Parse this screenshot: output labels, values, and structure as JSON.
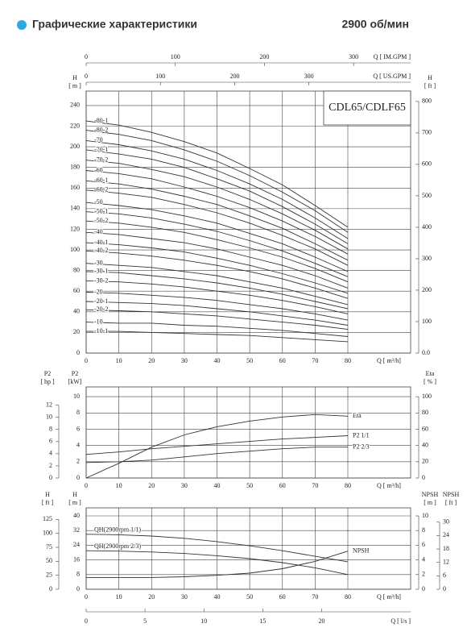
{
  "header": {
    "title": "Графические характеристики",
    "speed": "2900 об/мин"
  },
  "chart_data": [
    {
      "type": "line",
      "model": "CDL65/CDLF65",
      "grid": true,
      "x": [
        0,
        10,
        20,
        30,
        40,
        50,
        60,
        70,
        80
      ],
      "xlim": [
        0,
        99.2
      ],
      "xticks": [
        0,
        10,
        20,
        30,
        40,
        50,
        60,
        70,
        80
      ],
      "x_label": "Q [ m³/h]",
      "x_axes": [
        {
          "side": "top",
          "label": "Q [ IM.GPM ]",
          "lim": [
            0,
            364
          ],
          "ticks": [
            0,
            100,
            200,
            300
          ]
        },
        {
          "side": "top",
          "label": "Q [ US.GPM ]",
          "lim": [
            0,
            437
          ],
          "ticks": [
            0,
            100,
            200,
            300
          ]
        }
      ],
      "axes": [
        {
          "side": "left",
          "label": "H",
          "unit": "[ m ]",
          "lim": [
            0,
            254
          ],
          "ticks": [
            0,
            20,
            40,
            60,
            80,
            100,
            120,
            140,
            160,
            180,
            200,
            220,
            240
          ]
        },
        {
          "side": "right",
          "label": "H",
          "unit": "[ ft ]",
          "lim": [
            0,
            833
          ],
          "ticks": [
            {
              "value": 0,
              "label": "0.0"
            },
            100,
            200,
            300,
            400,
            500,
            600,
            700,
            800
          ]
        }
      ],
      "series": [
        {
          "name": "-80-1",
          "color": "#333",
          "label_pos": "start",
          "values": [
            225,
            221,
            214,
            205,
            194,
            179,
            163,
            143,
            122
          ]
        },
        {
          "name": "-80-2",
          "color": "#333",
          "label_pos": "start",
          "values": [
            216,
            212,
            206,
            197,
            186,
            172,
            156,
            138,
            117
          ]
        },
        {
          "name": "-70",
          "color": "#333",
          "label_pos": "start",
          "values": [
            206,
            202,
            196,
            188,
            177,
            164,
            149,
            131,
            111
          ]
        },
        {
          "name": "-70-1",
          "color": "#333",
          "label_pos": "start",
          "values": [
            197,
            193,
            188,
            180,
            169,
            157,
            142,
            125,
            106
          ]
        },
        {
          "name": "-70-2",
          "color": "#333",
          "label_pos": "start",
          "values": [
            187,
            184,
            178,
            171,
            161,
            149,
            135,
            119,
            101
          ]
        },
        {
          "name": "-60",
          "color": "#333",
          "label_pos": "start",
          "values": [
            177,
            174,
            169,
            161,
            152,
            141,
            128,
            113,
            96
          ]
        },
        {
          "name": "-60-1",
          "color": "#333",
          "label_pos": "start",
          "values": [
            167,
            164,
            159,
            152,
            144,
            133,
            121,
            106,
            90
          ]
        },
        {
          "name": "-60-2",
          "color": "#333",
          "label_pos": "start",
          "values": [
            158,
            155,
            151,
            144,
            136,
            126,
            114,
            101,
            85
          ]
        },
        {
          "name": "-50",
          "color": "#333",
          "label_pos": "start",
          "values": [
            146,
            143,
            139,
            133,
            126,
            116,
            106,
            93,
            79
          ]
        },
        {
          "name": "-50-1",
          "color": "#333",
          "label_pos": "start",
          "values": [
            137,
            135,
            131,
            125,
            118,
            109,
            99,
            87,
            74
          ]
        },
        {
          "name": "-50-2",
          "color": "#333",
          "label_pos": "start",
          "values": [
            128,
            126,
            122,
            117,
            110,
            102,
            93,
            82,
            69
          ]
        },
        {
          "name": "-40",
          "color": "#333",
          "label_pos": "start",
          "values": [
            117,
            115,
            111,
            107,
            101,
            93,
            85,
            75,
            63
          ]
        },
        {
          "name": "-40-1",
          "color": "#333",
          "label_pos": "start",
          "values": [
            107,
            105,
            102,
            98,
            92,
            85,
            77,
            68,
            58
          ]
        },
        {
          "name": "-40-2",
          "color": "#333",
          "label_pos": "start",
          "values": [
            99,
            97,
            94,
            90,
            85,
            79,
            72,
            63,
            53
          ]
        },
        {
          "name": "-30",
          "color": "#333",
          "label_pos": "start",
          "values": [
            87,
            85,
            83,
            79,
            75,
            69,
            63,
            55,
            47
          ]
        },
        {
          "name": "-30-1",
          "color": "#333",
          "label_pos": "start",
          "values": [
            79,
            78,
            75,
            72,
            68,
            63,
            57,
            50,
            43
          ]
        },
        {
          "name": "-30-2",
          "color": "#333",
          "label_pos": "start",
          "values": [
            70,
            69,
            67,
            64,
            60,
            56,
            51,
            45,
            38
          ]
        },
        {
          "name": "-20",
          "color": "#333",
          "label_pos": "start",
          "values": [
            59,
            58,
            56,
            54,
            51,
            47,
            43,
            38,
            32
          ]
        },
        {
          "name": "-20-1",
          "color": "#333",
          "label_pos": "start",
          "values": [
            50,
            49,
            48,
            46,
            43,
            40,
            36,
            32,
            27
          ]
        },
        {
          "name": "-20-2",
          "color": "#333",
          "label_pos": "start",
          "values": [
            42,
            41,
            40,
            38,
            36,
            33,
            30,
            27,
            23
          ]
        },
        {
          "name": "-10",
          "color": "#333",
          "label_pos": "start",
          "values": [
            30,
            29,
            29,
            27,
            26,
            24,
            22,
            19,
            16
          ]
        },
        {
          "name": "-10-1",
          "color": "#333",
          "label_pos": "start",
          "values": [
            21,
            21,
            20,
            19,
            18,
            17,
            15,
            13,
            11
          ]
        }
      ]
    },
    {
      "type": "line",
      "grid": true,
      "x": [
        0,
        10,
        20,
        30,
        40,
        50,
        60,
        70,
        80
      ],
      "xlim": [
        0,
        99.2
      ],
      "xticks": [
        0,
        10,
        20,
        30,
        40,
        50,
        60,
        70,
        80
      ],
      "x_label": "Q [ m³/h]",
      "axes": [
        {
          "side": "left",
          "label": "P2",
          "unit": "[kW]",
          "lim": [
            0,
            11.2
          ],
          "ticks": [
            0,
            2,
            4,
            6,
            8,
            10
          ]
        },
        {
          "side": "left",
          "label": "P2",
          "unit": "[ hp ]",
          "lim": [
            0,
            15
          ],
          "ticks": [
            0,
            2,
            4,
            6,
            8,
            10,
            12
          ]
        },
        {
          "side": "right",
          "label": "Eta",
          "unit": "[ % ]",
          "lim": [
            0,
            112
          ],
          "ticks": [
            0,
            20,
            40,
            60,
            80,
            100
          ]
        }
      ],
      "series": [
        {
          "name": "Eta",
          "color": "#333",
          "axis": 2,
          "label_pos": "end",
          "values": [
            0,
            18,
            38,
            53,
            63,
            70,
            75,
            78,
            76
          ]
        },
        {
          "name": "P2  1/1",
          "color": "#333",
          "axis": 0,
          "label_pos": "end",
          "values": [
            2.9,
            3.2,
            3.6,
            3.9,
            4.2,
            4.5,
            4.8,
            5.0,
            5.2
          ]
        },
        {
          "name": "P2  2/3",
          "color": "#333",
          "axis": 0,
          "label_pos": "end",
          "values": [
            1.9,
            2.0,
            2.2,
            2.6,
            3.0,
            3.3,
            3.6,
            3.8,
            3.8
          ]
        }
      ]
    },
    {
      "type": "line",
      "grid": true,
      "x": [
        0,
        10,
        20,
        30,
        40,
        50,
        60,
        70,
        80
      ],
      "xlim": [
        0,
        99.2
      ],
      "xticks": [
        0,
        10,
        20,
        30,
        40,
        50,
        60,
        70,
        80
      ],
      "x_label": "Q [ m³/h]",
      "x_axes": [
        {
          "side": "bottom",
          "label": "Q [ l/s ]",
          "lim": [
            0,
            27.56
          ],
          "ticks": [
            0,
            5,
            10,
            15,
            20
          ]
        }
      ],
      "axes": [
        {
          "side": "left",
          "label": "H",
          "unit": "[ m ]",
          "lim": [
            0,
            44.4
          ],
          "ticks": [
            0,
            8,
            16,
            24,
            32,
            40
          ]
        },
        {
          "side": "left",
          "label": "H",
          "unit": "[ ft ]",
          "lim": [
            0,
            145.7
          ],
          "ticks": [
            0,
            25,
            50,
            75,
            100,
            125
          ]
        },
        {
          "side": "right",
          "label": "NPSH",
          "unit": "[ m ]",
          "lim": [
            0,
            11.1
          ],
          "ticks": [
            0,
            2,
            4,
            6,
            8,
            10
          ]
        },
        {
          "side": "right",
          "label": "NPSH",
          "unit": "[ ft ]",
          "lim": [
            0,
            36.4
          ],
          "ticks": [
            0,
            6,
            12,
            18,
            24,
            30
          ]
        }
      ],
      "series": [
        {
          "name": "QH(2900rpm 1/1)",
          "color": "#333",
          "axis": 0,
          "label_pos": "start",
          "values": [
            30,
            29.7,
            29,
            27.8,
            26,
            23.7,
            21,
            18,
            15
          ]
        },
        {
          "name": "QH(2900rpm 2/3)",
          "color": "#333",
          "axis": 0,
          "label_pos": "start",
          "values": [
            21,
            20.8,
            20.3,
            19.5,
            18.3,
            16.7,
            14.5,
            11.7,
            8
          ]
        },
        {
          "name": "NPSH",
          "color": "#333",
          "axis": 2,
          "label_pos": "end",
          "values": [
            1.6,
            1.6,
            1.6,
            1.7,
            1.9,
            2.2,
            2.8,
            3.8,
            5.2
          ]
        }
      ]
    }
  ]
}
